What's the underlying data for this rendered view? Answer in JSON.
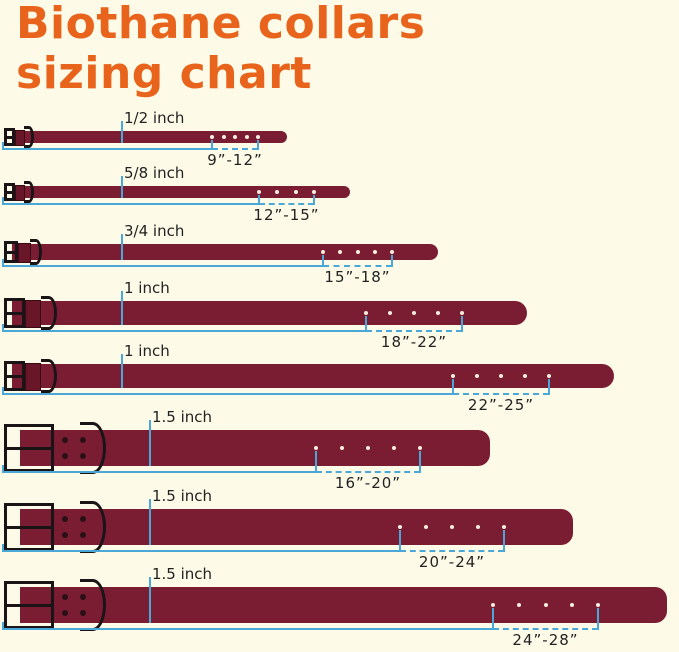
{
  "title_line1": "Biothane collars",
  "title_line2": "sizing chart",
  "colors": {
    "title": "#e8641c",
    "strap": "#7a1c32",
    "measure": "#4aa8d8",
    "background": "#fdfbe8"
  },
  "collars": [
    {
      "width": "1/2 inch",
      "range": "9”-12”"
    },
    {
      "width": "5/8 inch",
      "range": "12”-15”"
    },
    {
      "width": "3/4 inch",
      "range": "15”-18”"
    },
    {
      "width": "1 inch",
      "range": "18”-22”"
    },
    {
      "width": "1 inch",
      "range": "22”-25”"
    },
    {
      "width": "1.5 inch",
      "range": "16”-20”"
    },
    {
      "width": "1.5 inch",
      "range": "20”-24”"
    },
    {
      "width": "1.5 inch",
      "range": "24”-28”"
    }
  ]
}
